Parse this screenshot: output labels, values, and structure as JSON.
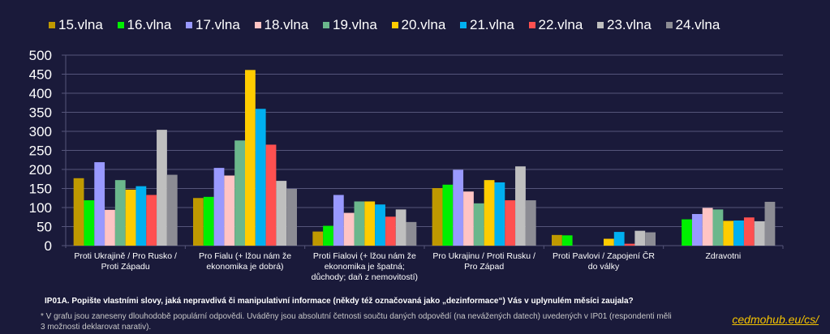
{
  "chart_data": {
    "type": "bar",
    "title": "",
    "categories": [
      "Proti Ukrajině / Pro Rusko / Proti Západu",
      "Pro Fialu (+ lžou nám že ekonomika je dobrá)",
      "Proti Fialovi (+ lžou nám že ekonomika je špatná; důchody; daň z nemovitostí)",
      "Pro Ukrajinu / Proti Rusku / Pro Západ",
      "Proti Pavlovi / Zapojení ČR do války",
      "Zdravotni"
    ],
    "ylim": [
      0,
      500
    ],
    "yticks": [
      0,
      50,
      100,
      150,
      200,
      250,
      300,
      350,
      400,
      450,
      500
    ],
    "grid": true,
    "legend": "top",
    "series": [
      {
        "name": "15.vlna",
        "color": "#bf9900",
        "values": [
          177,
          125,
          37,
          151,
          28,
          0
        ]
      },
      {
        "name": "16.vlna",
        "color": "#00f000",
        "values": [
          119,
          128,
          52,
          160,
          27,
          69
        ]
      },
      {
        "name": "17.vlna",
        "color": "#9999ff",
        "values": [
          219,
          204,
          133,
          199,
          0,
          83
        ]
      },
      {
        "name": "18.vlna",
        "color": "#ffc4c4",
        "values": [
          94,
          184,
          86,
          142,
          0,
          99
        ]
      },
      {
        "name": "19.vlna",
        "color": "#6bb78c",
        "values": [
          172,
          276,
          116,
          111,
          0,
          95
        ]
      },
      {
        "name": "20.vlna",
        "color": "#ffcc00",
        "values": [
          147,
          461,
          116,
          172,
          18,
          65
        ]
      },
      {
        "name": "21.vlna",
        "color": "#00b0f0",
        "values": [
          156,
          359,
          108,
          166,
          36,
          66
        ]
      },
      {
        "name": "22.vlna",
        "color": "#ff5050",
        "values": [
          133,
          265,
          76,
          119,
          5,
          74
        ]
      },
      {
        "name": "23.vlna",
        "color": "#bfbfbf",
        "values": [
          304,
          170,
          95,
          208,
          39,
          64
        ]
      },
      {
        "name": "24.vlna",
        "color": "#8c8c94",
        "values": [
          186,
          149,
          62,
          119,
          35,
          115
        ]
      }
    ]
  },
  "footer": {
    "question": "IP01A. Popište vlastními slovy, jaká nepravdivá či manipulativní informace (někdy též označovaná jako „dezinformace“) Vás v uplynulém měsíci zaujala?",
    "note": "* V grafu jsou zaneseny dlouhodobě populární odpovědi. Uváděny jsou absolutní četnosti součtu daných odpovědí (na nevážených datech) uvedených v IP01 (respondenti měli 3 možnosti deklarovat narativ).",
    "link": "cedmohub.eu/cs/"
  }
}
